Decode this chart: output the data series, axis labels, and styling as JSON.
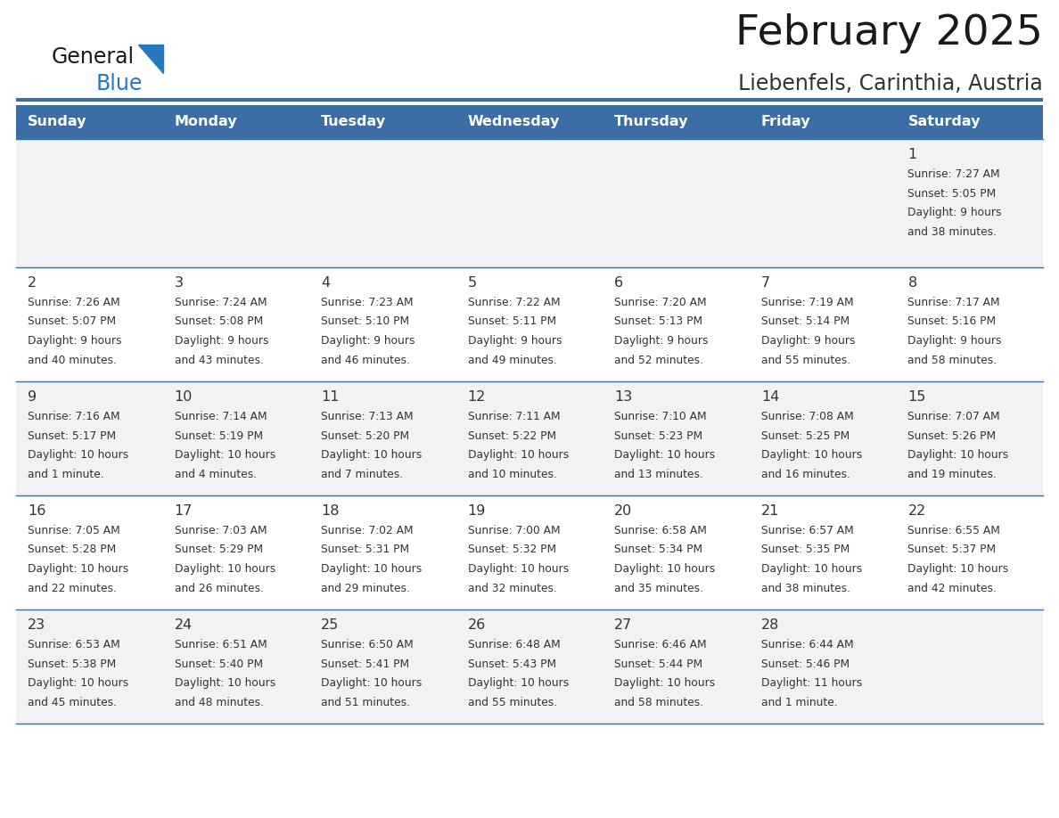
{
  "title": "February 2025",
  "subtitle": "Liebenfels, Carinthia, Austria",
  "days_of_week": [
    "Sunday",
    "Monday",
    "Tuesday",
    "Wednesday",
    "Thursday",
    "Friday",
    "Saturday"
  ],
  "header_bg": "#3a6ea5",
  "header_text": "#ffffff",
  "row_bg_light": "#f2f2f2",
  "row_bg_white": "#ffffff",
  "cell_text_color": "#333333",
  "day_num_color": "#333333",
  "border_color": "#3a6ea5",
  "title_color": "#1a1a1a",
  "subtitle_color": "#333333",
  "logo_general_color": "#1a1a1a",
  "logo_blue_color": "#2878c0",
  "weeks": [
    {
      "days": [
        {
          "day": null,
          "info": null
        },
        {
          "day": null,
          "info": null
        },
        {
          "day": null,
          "info": null
        },
        {
          "day": null,
          "info": null
        },
        {
          "day": null,
          "info": null
        },
        {
          "day": null,
          "info": null
        },
        {
          "day": 1,
          "info": "Sunrise: 7:27 AM\nSunset: 5:05 PM\nDaylight: 9 hours\nand 38 minutes."
        }
      ]
    },
    {
      "days": [
        {
          "day": 2,
          "info": "Sunrise: 7:26 AM\nSunset: 5:07 PM\nDaylight: 9 hours\nand 40 minutes."
        },
        {
          "day": 3,
          "info": "Sunrise: 7:24 AM\nSunset: 5:08 PM\nDaylight: 9 hours\nand 43 minutes."
        },
        {
          "day": 4,
          "info": "Sunrise: 7:23 AM\nSunset: 5:10 PM\nDaylight: 9 hours\nand 46 minutes."
        },
        {
          "day": 5,
          "info": "Sunrise: 7:22 AM\nSunset: 5:11 PM\nDaylight: 9 hours\nand 49 minutes."
        },
        {
          "day": 6,
          "info": "Sunrise: 7:20 AM\nSunset: 5:13 PM\nDaylight: 9 hours\nand 52 minutes."
        },
        {
          "day": 7,
          "info": "Sunrise: 7:19 AM\nSunset: 5:14 PM\nDaylight: 9 hours\nand 55 minutes."
        },
        {
          "day": 8,
          "info": "Sunrise: 7:17 AM\nSunset: 5:16 PM\nDaylight: 9 hours\nand 58 minutes."
        }
      ]
    },
    {
      "days": [
        {
          "day": 9,
          "info": "Sunrise: 7:16 AM\nSunset: 5:17 PM\nDaylight: 10 hours\nand 1 minute."
        },
        {
          "day": 10,
          "info": "Sunrise: 7:14 AM\nSunset: 5:19 PM\nDaylight: 10 hours\nand 4 minutes."
        },
        {
          "day": 11,
          "info": "Sunrise: 7:13 AM\nSunset: 5:20 PM\nDaylight: 10 hours\nand 7 minutes."
        },
        {
          "day": 12,
          "info": "Sunrise: 7:11 AM\nSunset: 5:22 PM\nDaylight: 10 hours\nand 10 minutes."
        },
        {
          "day": 13,
          "info": "Sunrise: 7:10 AM\nSunset: 5:23 PM\nDaylight: 10 hours\nand 13 minutes."
        },
        {
          "day": 14,
          "info": "Sunrise: 7:08 AM\nSunset: 5:25 PM\nDaylight: 10 hours\nand 16 minutes."
        },
        {
          "day": 15,
          "info": "Sunrise: 7:07 AM\nSunset: 5:26 PM\nDaylight: 10 hours\nand 19 minutes."
        }
      ]
    },
    {
      "days": [
        {
          "day": 16,
          "info": "Sunrise: 7:05 AM\nSunset: 5:28 PM\nDaylight: 10 hours\nand 22 minutes."
        },
        {
          "day": 17,
          "info": "Sunrise: 7:03 AM\nSunset: 5:29 PM\nDaylight: 10 hours\nand 26 minutes."
        },
        {
          "day": 18,
          "info": "Sunrise: 7:02 AM\nSunset: 5:31 PM\nDaylight: 10 hours\nand 29 minutes."
        },
        {
          "day": 19,
          "info": "Sunrise: 7:00 AM\nSunset: 5:32 PM\nDaylight: 10 hours\nand 32 minutes."
        },
        {
          "day": 20,
          "info": "Sunrise: 6:58 AM\nSunset: 5:34 PM\nDaylight: 10 hours\nand 35 minutes."
        },
        {
          "day": 21,
          "info": "Sunrise: 6:57 AM\nSunset: 5:35 PM\nDaylight: 10 hours\nand 38 minutes."
        },
        {
          "day": 22,
          "info": "Sunrise: 6:55 AM\nSunset: 5:37 PM\nDaylight: 10 hours\nand 42 minutes."
        }
      ]
    },
    {
      "days": [
        {
          "day": 23,
          "info": "Sunrise: 6:53 AM\nSunset: 5:38 PM\nDaylight: 10 hours\nand 45 minutes."
        },
        {
          "day": 24,
          "info": "Sunrise: 6:51 AM\nSunset: 5:40 PM\nDaylight: 10 hours\nand 48 minutes."
        },
        {
          "day": 25,
          "info": "Sunrise: 6:50 AM\nSunset: 5:41 PM\nDaylight: 10 hours\nand 51 minutes."
        },
        {
          "day": 26,
          "info": "Sunrise: 6:48 AM\nSunset: 5:43 PM\nDaylight: 10 hours\nand 55 minutes."
        },
        {
          "day": 27,
          "info": "Sunrise: 6:46 AM\nSunset: 5:44 PM\nDaylight: 10 hours\nand 58 minutes."
        },
        {
          "day": 28,
          "info": "Sunrise: 6:44 AM\nSunset: 5:46 PM\nDaylight: 11 hours\nand 1 minute."
        },
        {
          "day": null,
          "info": null
        }
      ]
    }
  ],
  "row_colors": [
    "#f2f2f2",
    "#ffffff",
    "#f2f2f2",
    "#ffffff",
    "#f2f2f2"
  ]
}
